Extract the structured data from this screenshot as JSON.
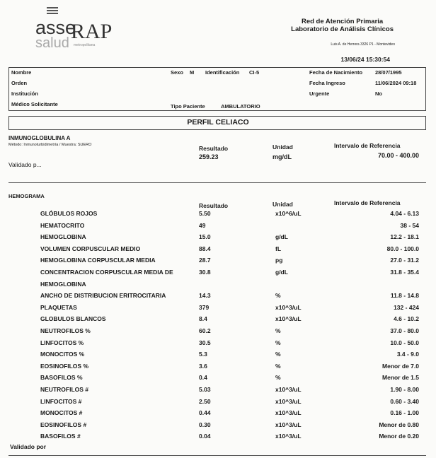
{
  "header": {
    "logo_asse": "asse",
    "logo_salud": "salud",
    "logo_rap": "RAP",
    "logo_rap_sub": "metropolitana",
    "org_line1": "Red de Atención Primaria",
    "org_line2": "Laboratorio de Análisis Clínicos",
    "address": "Luis A. de Herrera 3326 P1 - Montevideo",
    "print_datetime": "13/06/24 15:30:54"
  },
  "patient": {
    "nombre_label": "Nombre",
    "orden_label": "Orden",
    "institucion_label": "Institución",
    "medico_label": "Médico Solicitante",
    "sexo_label": "Sexo",
    "sexo_value": "M",
    "identificacion_label": "Identificación",
    "identificacion_value": "CI-5",
    "tipo_label": "Tipo Paciente",
    "tipo_value": "AMBULATORIO",
    "nacimiento_label": "Fecha de Nacimiento",
    "nacimiento_value": "28/07/1995",
    "ingreso_label": "Fecha Ingreso",
    "ingreso_value": "11/06/2024 09:18",
    "urgente_label": "Urgente",
    "urgente_value": "No"
  },
  "section_title": "PERFIL CELIACO",
  "iga": {
    "title": "INMUNOGLOBULINA A",
    "method": "Método: Inmunoturbidimetría / Muestra: SUERO",
    "col_result": "Resultado",
    "col_unit": "Unidad",
    "col_ref": "Intervalo de Referencia",
    "result": "259.23",
    "unit": "mg/dL",
    "ref": "70.00 - 400.00",
    "validated": "Validado p..."
  },
  "hemograma": {
    "title": "HEMOGRAMA",
    "col_result": "Resultado",
    "col_unit": "Unidad",
    "col_ref": "Intervalo de Referencia",
    "rows": [
      {
        "name": "GLÓBULOS ROJOS",
        "result": "5.50",
        "unit": "x10^6/uL",
        "ref": "4.04 - 6.13"
      },
      {
        "name": "HEMATOCRITO",
        "result": "49",
        "unit": "",
        "ref": "38 - 54"
      },
      {
        "name": "HEMOGLOBINA",
        "result": "15.0",
        "unit": "g/dL",
        "ref": "12.2 - 18.1"
      },
      {
        "name": "VOLUMEN CORPUSCULAR MEDIO",
        "result": "88.4",
        "unit": "fL",
        "ref": "80.0 - 100.0"
      },
      {
        "name": "HEMOGLOBINA CORPUSCULAR MEDIA",
        "result": "28.7",
        "unit": "pg",
        "ref": "27.0 - 31.2"
      },
      {
        "name": "CONCENTRACION CORPUSCULAR MEDIA DE",
        "result": "30.8",
        "unit": "g/dL",
        "ref": "31.8 - 35.4"
      },
      {
        "name": "HEMOGLOBINA",
        "result": "",
        "unit": "",
        "ref": ""
      },
      {
        "name": "ANCHO DE DISTRIBUCION ERITROCITARIA",
        "result": "14.3",
        "unit": "%",
        "ref": "11.8 - 14.8"
      },
      {
        "name": "PLAQUETAS",
        "result": "379",
        "unit": "x10^3/uL",
        "ref": "132 - 424"
      },
      {
        "name": "GLOBULOS BLANCOS",
        "result": "8.4",
        "unit": "x10^3/uL",
        "ref": "4.6 - 10.2"
      },
      {
        "name": "NEUTROFILOS %",
        "result": "60.2",
        "unit": "%",
        "ref": "37.0 - 80.0"
      },
      {
        "name": "LINFOCITOS %",
        "result": "30.5",
        "unit": "%",
        "ref": "10.0 - 50.0"
      },
      {
        "name": "MONOCITOS %",
        "result": "5.3",
        "unit": "%",
        "ref": "3.4 - 9.0"
      },
      {
        "name": "EOSINOFILOS %",
        "result": "3.6",
        "unit": "%",
        "ref": "Menor de 7.0"
      },
      {
        "name": "BASOFILOS %",
        "result": "0.4",
        "unit": "%",
        "ref": "Menor de 1.5"
      },
      {
        "name": "NEUTROFILOS #",
        "result": "5.03",
        "unit": "x10^3/uL",
        "ref": "1.90 - 8.00"
      },
      {
        "name": "LINFOCITOS #",
        "result": "2.50",
        "unit": "x10^3/uL",
        "ref": "0.60 - 3.40"
      },
      {
        "name": "MONOCITOS #",
        "result": "0.44",
        "unit": "x10^3/uL",
        "ref": "0.16 - 1.00"
      },
      {
        "name": "EOSINOFILOS #",
        "result": "0.30",
        "unit": "x10^3/uL",
        "ref": "Menor de 0.80"
      },
      {
        "name": "BASOFILOS #",
        "result": "0.04",
        "unit": "x10^3/uL",
        "ref": "Menor de 0.20"
      }
    ],
    "validated": "Validado por"
  }
}
